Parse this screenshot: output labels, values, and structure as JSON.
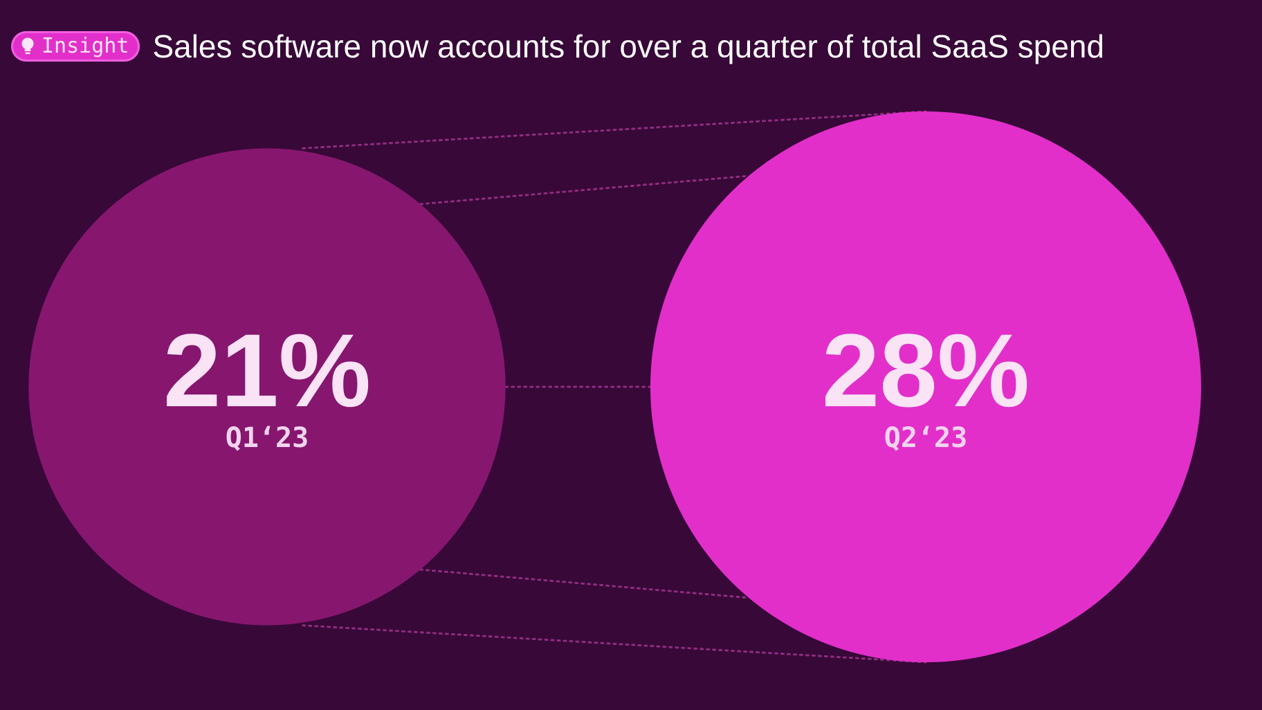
{
  "header": {
    "badge_label": "Insight",
    "badge_icon": "lightbulb-icon",
    "title": "Sales software now accounts for over a quarter of total SaaS spend"
  },
  "colors": {
    "background": "#370838",
    "q1_bubble": "#87166f",
    "q2_bubble": "#e22fca",
    "badge": "#e22fca",
    "connector": "#8f2c7e",
    "label_text": "#fbe3f6"
  },
  "chart_data": {
    "type": "bubble-comparison",
    "title": "Sales software now accounts for over a quarter of total SaaS spend",
    "unit": "%",
    "items": [
      {
        "category": "Q1‘23",
        "value": 21,
        "label": "21%"
      },
      {
        "category": "Q2‘23",
        "value": 28,
        "label": "28%"
      }
    ]
  }
}
